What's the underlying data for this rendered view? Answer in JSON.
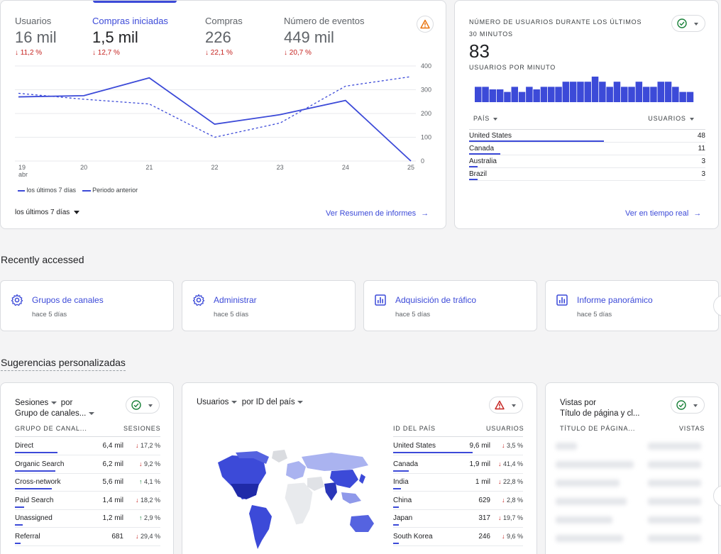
{
  "overview": {
    "metrics": [
      {
        "label": "Usuarios",
        "value": "16 mil",
        "delta": "11,2 %"
      },
      {
        "label": "Compras iniciadas",
        "value": "1,5 mil",
        "delta": "12,7 %"
      },
      {
        "label": "Compras",
        "value": "226",
        "delta": "22,1 %"
      },
      {
        "label": "Número de eventos",
        "value": "449 mil",
        "delta": "20,7 %"
      }
    ],
    "chart": {
      "x_labels": [
        "19",
        "20",
        "21",
        "22",
        "23",
        "24",
        "25"
      ],
      "x_sublabel": "abr",
      "y_ticks": [
        "400",
        "300",
        "200",
        "100",
        "0"
      ],
      "legend_current": "los últimos 7 días",
      "legend_previous": "Periodo anterior"
    },
    "date_range": "los últimos 7 días",
    "report_link": "Ver Resumen de informes"
  },
  "chart_data": {
    "type": "line",
    "x": [
      "19",
      "20",
      "21",
      "22",
      "23",
      "24",
      "25"
    ],
    "series": [
      {
        "name": "los últimos 7 días",
        "values": [
          270,
          275,
          350,
          155,
          195,
          255,
          0
        ]
      },
      {
        "name": "Periodo anterior",
        "values": [
          285,
          260,
          240,
          100,
          160,
          315,
          355
        ]
      }
    ],
    "ylim": [
      0,
      400
    ]
  },
  "realtime": {
    "title_line1": "NÚMERO DE USUARIOS DURANTE LOS ÚLTIMOS",
    "title_line2": "30 MINUTOS",
    "value": "83",
    "subtitle": "USUARIOS POR MINUTO",
    "bars": [
      3,
      3,
      2.5,
      2.5,
      2,
      3,
      2,
      3,
      2.5,
      3,
      3,
      3,
      4,
      4,
      4,
      4,
      5,
      4,
      3,
      4,
      3,
      3,
      4,
      3,
      3,
      4,
      4,
      3,
      2,
      2
    ],
    "col_country": "PAÍS",
    "col_users": "USUARIOS",
    "rows": [
      {
        "country": "United States",
        "users": "48",
        "share": 1.0
      },
      {
        "country": "Canada",
        "users": "11",
        "share": 0.23
      },
      {
        "country": "Australia",
        "users": "3",
        "share": 0.06
      },
      {
        "country": "Brazil",
        "users": "3",
        "share": 0.06
      }
    ],
    "link": "Ver en tiempo real"
  },
  "recent": {
    "heading": "Recently accessed",
    "items": [
      {
        "title": "Grupos de canales",
        "sub": "hace 5 días",
        "icon": "gear-icon"
      },
      {
        "title": "Administrar",
        "sub": "hace 5 días",
        "icon": "gear-icon"
      },
      {
        "title": "Adquisición de tráfico",
        "sub": "hace 5 días",
        "icon": "bar-chart-icon"
      },
      {
        "title": "Informe panorámico",
        "sub": "hace 5 días",
        "icon": "bar-chart-icon"
      }
    ]
  },
  "suggestions": {
    "heading": "Sugerencias personalizadas",
    "sessions": {
      "dim1": "Sesiones",
      "by": "por",
      "dim2": "Grupo de canales...",
      "col1": "GRUPO DE CANAL...",
      "col2": "SESIONES",
      "rows": [
        {
          "name": "Direct",
          "value": "6,4 mil",
          "delta": "17,2 %",
          "dir": "down",
          "share": 1.0
        },
        {
          "name": "Organic Search",
          "value": "6,2 mil",
          "delta": "9,2 %",
          "dir": "down",
          "share": 0.95
        },
        {
          "name": "Cross-network",
          "value": "5,6 mil",
          "delta": "4,1 %",
          "dir": "up",
          "share": 0.86
        },
        {
          "name": "Paid Search",
          "value": "1,4 mil",
          "delta": "18,2 %",
          "dir": "down",
          "share": 0.22
        },
        {
          "name": "Unassigned",
          "value": "1,2 mil",
          "delta": "2,9 %",
          "dir": "up",
          "share": 0.18
        },
        {
          "name": "Referral",
          "value": "681",
          "delta": "29,4 %",
          "dir": "down",
          "share": 0.1
        }
      ]
    },
    "country": {
      "dim1": "Usuarios",
      "dim2": "por ID del país",
      "col1": "ID DEL PAÍS",
      "col2": "USUARIOS",
      "rows": [
        {
          "name": "United States",
          "value": "9,6 mil",
          "delta": "3,5 %",
          "dir": "down",
          "share": 1.0
        },
        {
          "name": "Canada",
          "value": "1,9 mil",
          "delta": "41,4 %",
          "dir": "down",
          "share": 0.2
        },
        {
          "name": "India",
          "value": "1 mil",
          "delta": "22,8 %",
          "dir": "down",
          "share": 0.1
        },
        {
          "name": "China",
          "value": "629",
          "delta": "2,8 %",
          "dir": "down",
          "share": 0.07
        },
        {
          "name": "Japan",
          "value": "317",
          "delta": "19,7 %",
          "dir": "down",
          "share": 0.04
        },
        {
          "name": "South Korea",
          "value": "246",
          "delta": "9,6 %",
          "dir": "down",
          "share": 0.03
        }
      ]
    },
    "views": {
      "dim1": "Vistas por",
      "dim2": "Título de página y cl...",
      "col1": "TÍTULO DE PÁGINA...",
      "col2": "VISTAS"
    }
  },
  "colors": {
    "accent": "#3c4ad8",
    "down": "#c5221f",
    "up": "#188038",
    "warn": "#e8710a"
  }
}
